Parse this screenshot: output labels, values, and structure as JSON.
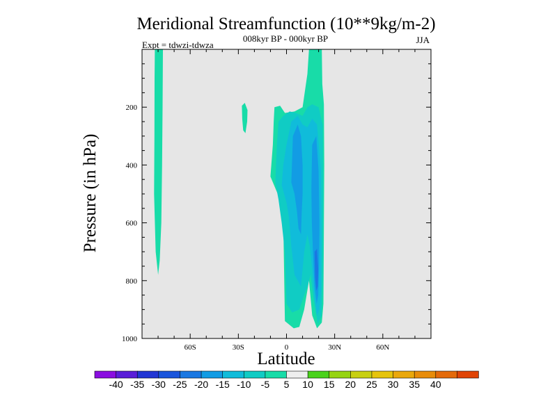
{
  "chart_data": {
    "type": "contour",
    "title": "Meridional Streamfunction (10**9kg/m-2)",
    "subtitle": "008kyr BP - 000kyr BP",
    "left_label": "Expt = tdwzi-tdwza",
    "right_label": "JJA",
    "xlabel": "Latitude",
    "ylabel": "Pressure (in hPa)",
    "xlim": [
      -90,
      90
    ],
    "ylim": [
      1000,
      0
    ],
    "x_ticks": [
      {
        "value": -60,
        "label": "60S"
      },
      {
        "value": -30,
        "label": "30S"
      },
      {
        "value": 0,
        "label": "0"
      },
      {
        "value": 30,
        "label": "30N"
      },
      {
        "value": 60,
        "label": "60N"
      }
    ],
    "y_ticks": [
      {
        "value": 200,
        "label": "200"
      },
      {
        "value": 400,
        "label": "400"
      },
      {
        "value": 600,
        "label": "600"
      },
      {
        "value": 800,
        "label": "800"
      },
      {
        "value": 1000,
        "label": "1000"
      }
    ],
    "background_color": "#e6e6e6",
    "colorbar": {
      "levels": [
        "-40",
        "-35",
        "-30",
        "-25",
        "-20",
        "-15",
        "-10",
        "-5",
        "5",
        "10",
        "15",
        "20",
        "25",
        "30",
        "35",
        "40"
      ],
      "colors": [
        "#8a0ee0",
        "#5a1ed8",
        "#2236d4",
        "#1a55dc",
        "#1a78e2",
        "#129ce4",
        "#10bcda",
        "#10ccc4",
        "#18dca8",
        "#eeeeee",
        "#4ad21c",
        "#96d412",
        "#c8d012",
        "#e6c40c",
        "#eaa80c",
        "#e88c0a",
        "#e46a0a",
        "#e04406"
      ]
    },
    "regions": [
      {
        "name": "sh-polar-cell",
        "level": "-10 to -5",
        "lat_range": [
          -82,
          -77
        ],
        "p_range": [
          0,
          780
        ]
      },
      {
        "name": "sh-midlat-blob",
        "level": "-10 to -5",
        "lat_range": [
          -28,
          -24
        ],
        "p_range": [
          190,
          290
        ]
      },
      {
        "name": "tropical-cell",
        "level": "-25 to -5",
        "lat_range": [
          -10,
          24
        ],
        "p_range": [
          0,
          960
        ]
      },
      {
        "name": "tropical-core",
        "level": "-30 to -25",
        "lat_range": [
          17,
          21
        ],
        "p_range": [
          700,
          820
        ]
      }
    ]
  }
}
